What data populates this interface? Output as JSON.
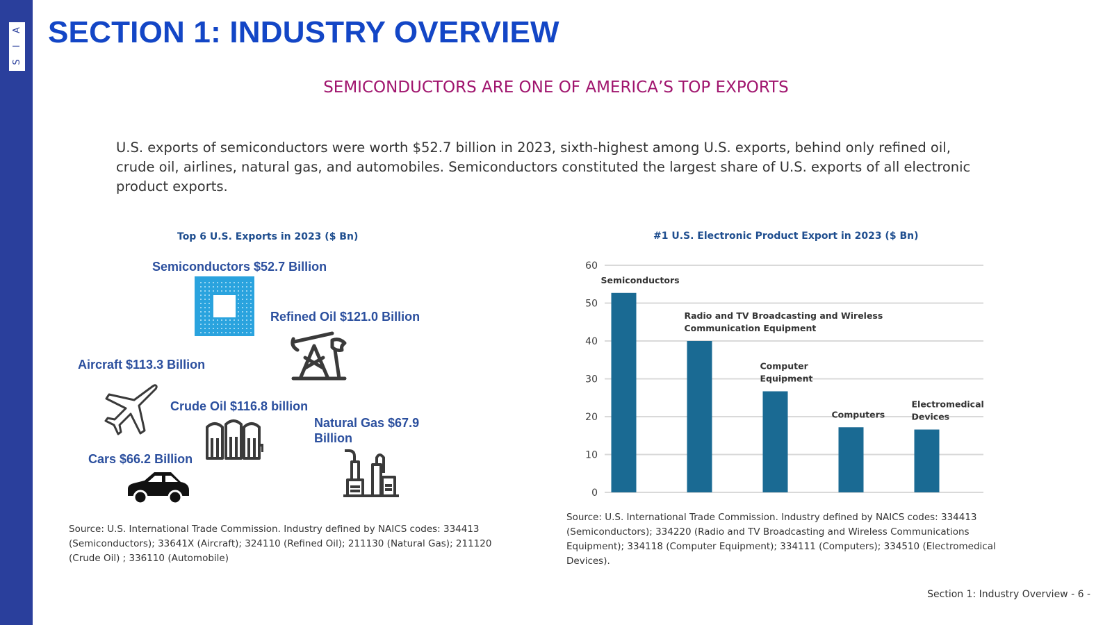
{
  "brand": {
    "logo_letters": [
      "S",
      "I",
      "A"
    ]
  },
  "page": {
    "title": "SECTION 1: INDUSTRY OVERVIEW",
    "subtitle": "SEMICONDUCTORS ARE ONE OF AMERICA’S TOP EXPORTS",
    "intro": "U.S. exports of semiconductors were worth $52.7 billion in 2023, sixth-highest among U.S. exports, behind only refined oil, crude oil, airlines, natural gas, and automobiles. Semiconductors constituted the largest share of U.S. exports of all electronic product exports.",
    "footer": "Section 1: Industry Overview - 6 -"
  },
  "left_panel": {
    "title": "Top 6 U.S. Exports in 2023 ($ Bn)",
    "items": {
      "semiconductors": {
        "label": "Semiconductors $52.7 Billion",
        "icon": "chip-icon"
      },
      "refined_oil": {
        "label": "Refined Oil $121.0 Billion",
        "icon": "oil-pump-icon"
      },
      "aircraft": {
        "label": "Aircraft $113.3 Billion",
        "icon": "airplane-icon"
      },
      "crude_oil": {
        "label": "Crude Oil $116.8 billion",
        "icon": "oil-tanks-icon"
      },
      "natural_gas": {
        "label": "Natural Gas $67.9 Billion",
        "icon": "gas-plant-icon"
      },
      "cars": {
        "label": "Cars $66.2 Billion",
        "icon": "car-icon"
      }
    },
    "source": "Source: U.S. International Trade Commission. Industry defined by NAICS codes: 334413 (Semiconductors); 33641X (Aircraft); 324110 (Refined Oil); 211130 (Natural Gas); 211120 (Crude Oil) ; 336110 (Automobile)"
  },
  "right_panel": {
    "source": "Source: U.S. International Trade Commission. Industry defined by NAICS codes: 334413 (Semiconductors); 334220 (Radio and TV Broadcasting and Wireless Communications Equipment); 334118 (Computer Equipment); 334111 (Computers); 334510 (Electromedical Devices)."
  },
  "colors": {
    "bar": "#1a6a93",
    "title_blue": "#1346c6",
    "subtitle_magenta": "#a0156e",
    "label_blue": "#2b4f9e",
    "grid": "#d9d9d9"
  },
  "chart_data": {
    "type": "bar",
    "title": "#1 U.S. Electronic Product Export in 2023 ($ Bn)",
    "categories": [
      [
        "Semiconductors"
      ],
      [
        "Radio and TV Broadcasting and Wireless",
        "Communication Equipment"
      ],
      [
        "Computer",
        "Equipment"
      ],
      [
        "Computers"
      ],
      [
        "Electromedical",
        "Devices"
      ]
    ],
    "values": [
      52.7,
      40.0,
      26.7,
      17.2,
      16.6
    ],
    "ylim": [
      0,
      60
    ],
    "yticks": [
      0,
      10,
      20,
      30,
      40,
      50,
      60
    ],
    "xlabel": "",
    "ylabel": "",
    "grid": true,
    "legend": "none"
  }
}
